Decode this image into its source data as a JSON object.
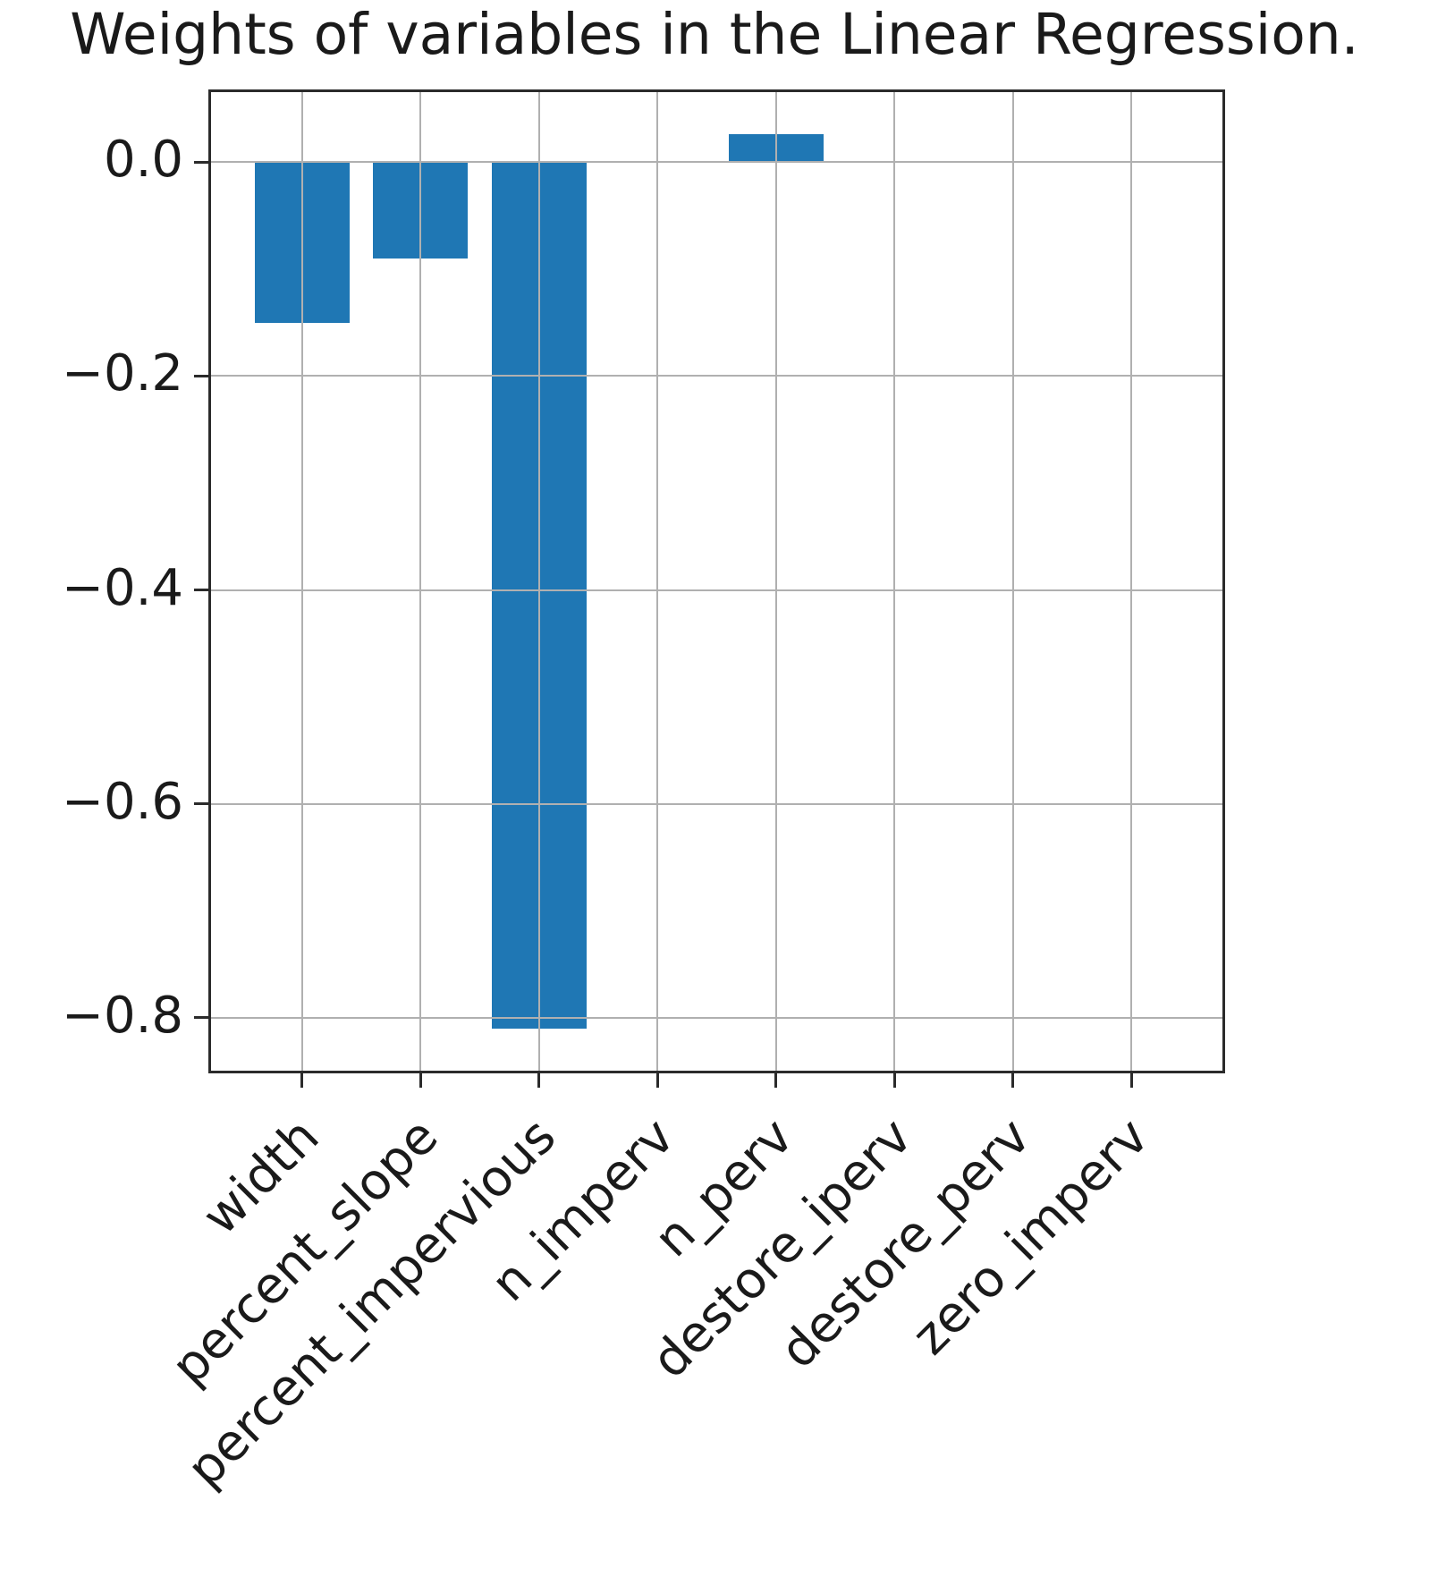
{
  "title": "Weights of variables in the Linear Regression.",
  "chart_data": {
    "type": "bar",
    "title": "Weights of variables in the Linear Regression.",
    "categories": [
      "width",
      "percent_slope",
      "percent_impervious",
      "n_imperv",
      "n_perv",
      "destore_iperv",
      "destore_perv",
      "zero_imperv"
    ],
    "values": [
      -0.15,
      -0.09,
      -0.81,
      0,
      0.026,
      0,
      0,
      0
    ],
    "xlabel": "",
    "ylabel": "",
    "yticks": [
      0.0,
      -0.2,
      -0.4,
      -0.6,
      -0.8
    ],
    "ytick_labels": [
      "0.0",
      "−0.2",
      "−0.4",
      "−0.6",
      "−0.8"
    ],
    "ylim": [
      -0.852,
      0.068
    ],
    "xlim": [
      -0.79,
      7.79
    ],
    "bar_width": 0.8,
    "grid": true,
    "grid_over_bars": true,
    "legend": false,
    "colors": {
      "bar": "#1f77b4",
      "grid": "#b0b0b0",
      "spine": "#2b2b2b",
      "text": "#1a1a1a",
      "background": "#ffffff"
    }
  }
}
